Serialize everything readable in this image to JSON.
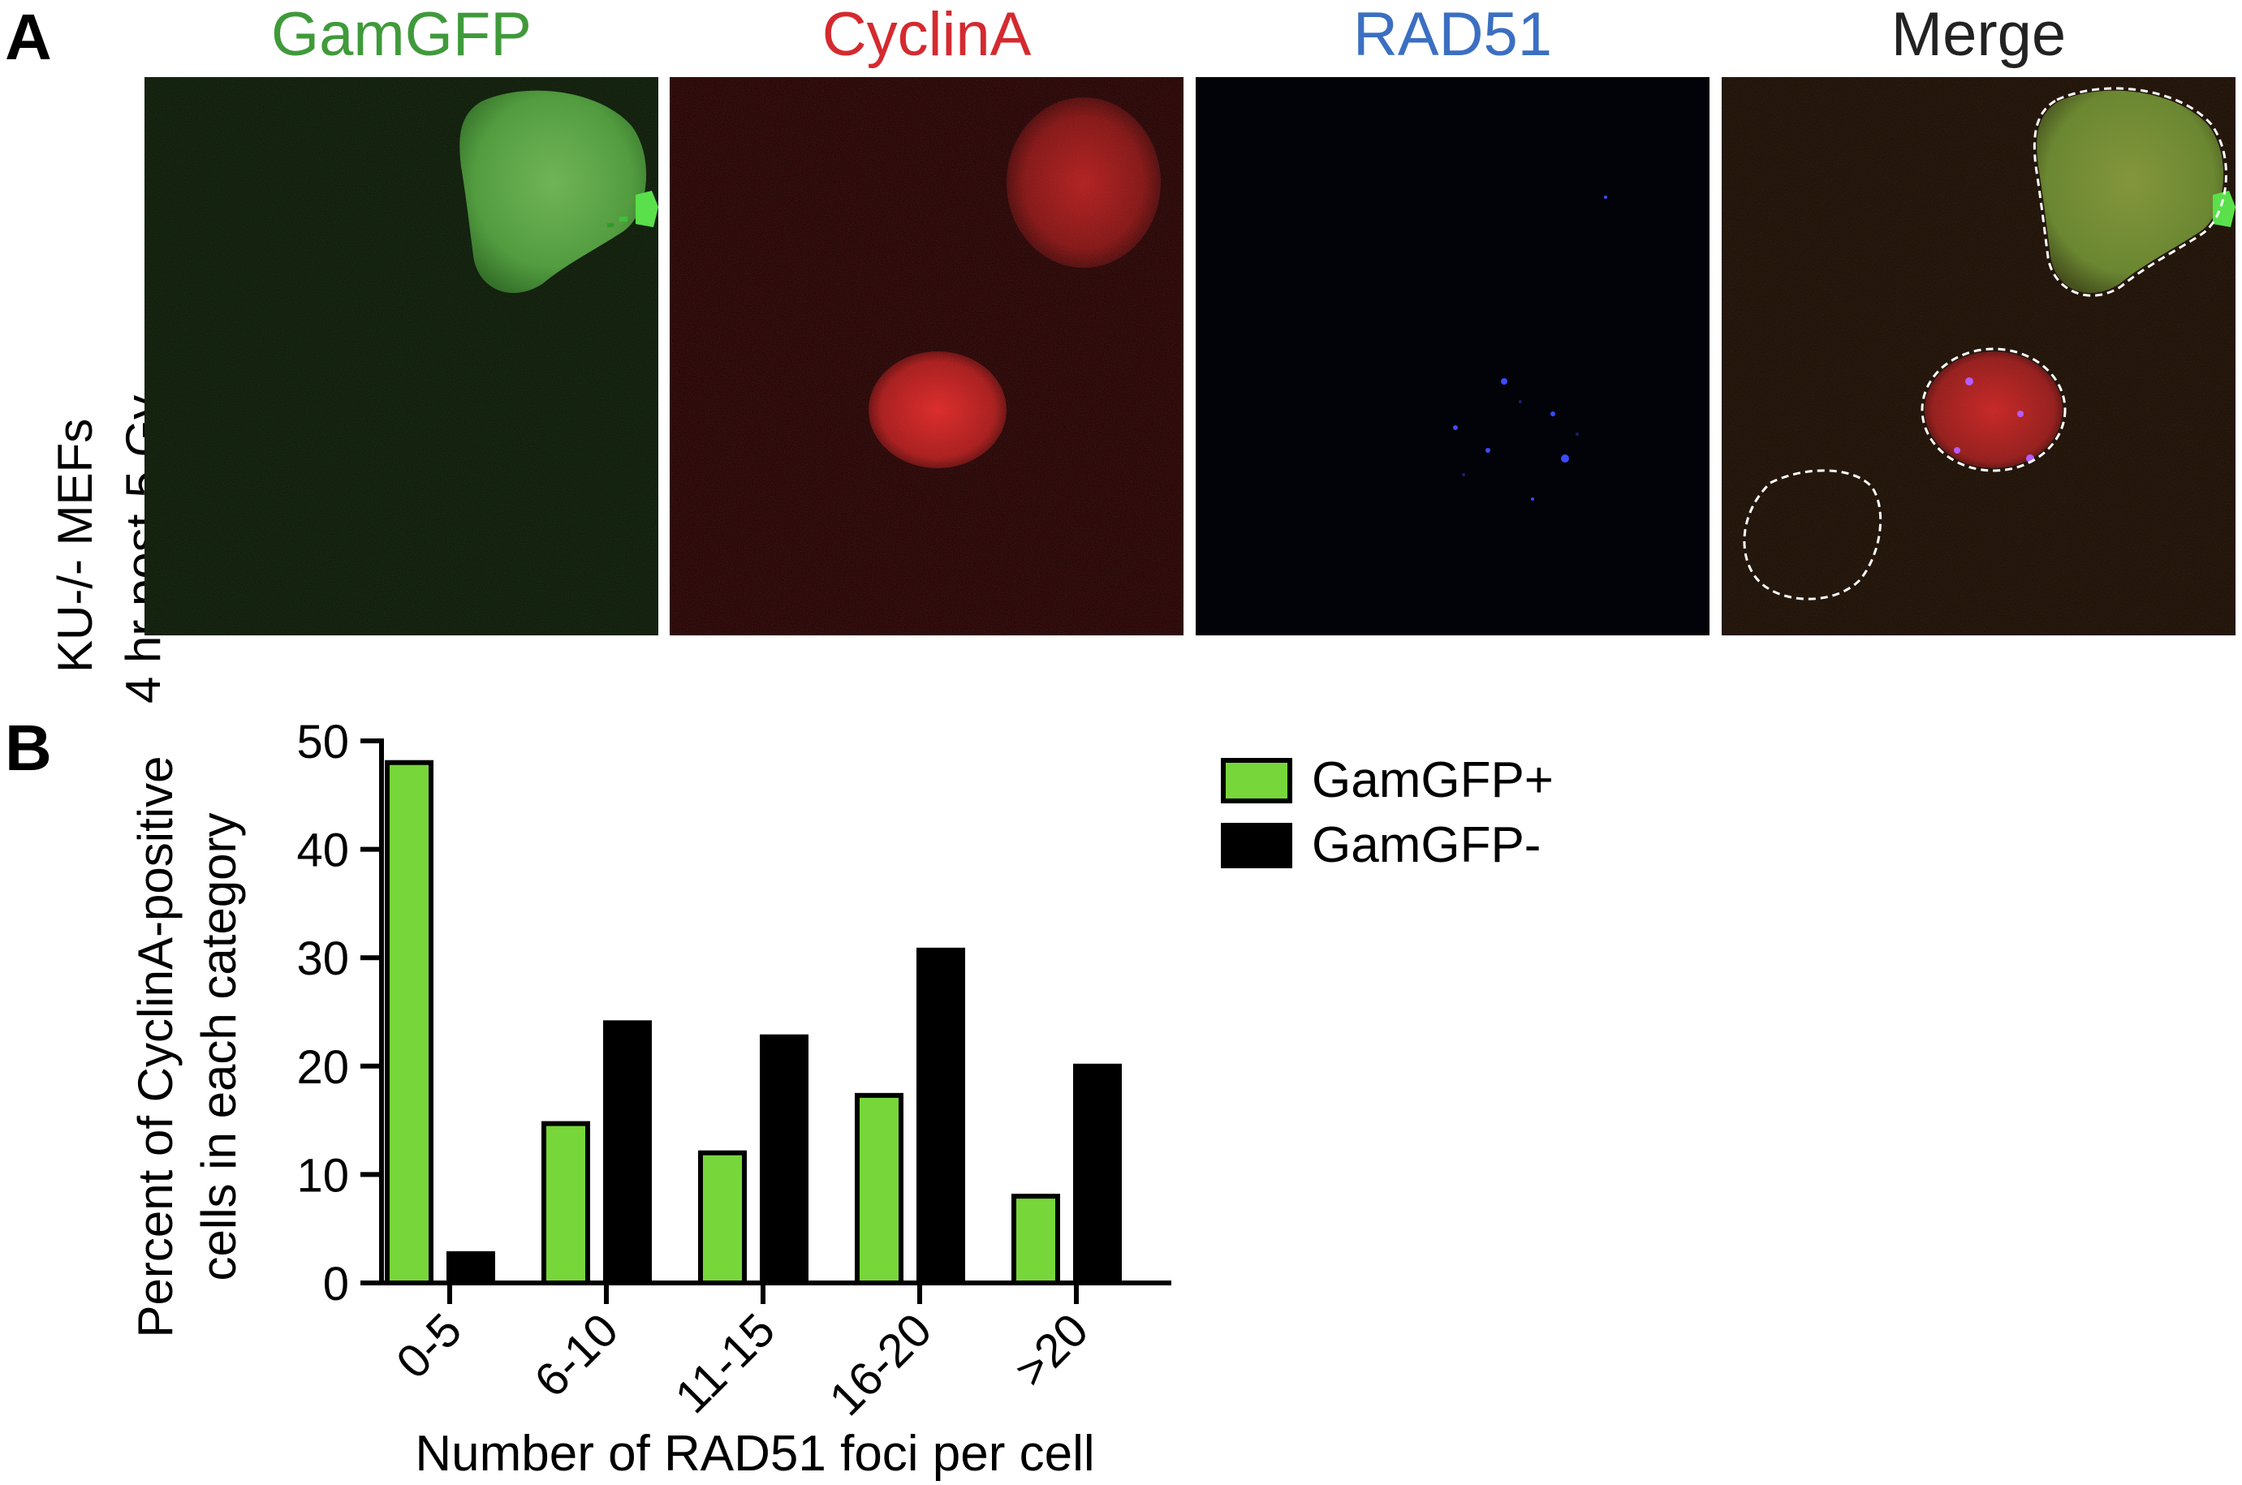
{
  "panels": {
    "a_label": "A",
    "b_label": "B"
  },
  "panel_a": {
    "channels": [
      {
        "label": "GamGFP",
        "color": "#3f9a3a"
      },
      {
        "label": "CyclinA",
        "color": "#d42a2f"
      },
      {
        "label": "RAD51",
        "color": "#3b6fc2"
      },
      {
        "label": "Merge",
        "color": "#222222"
      }
    ],
    "row_label_line1": "KU-/- MEFs",
    "row_label_line2": "4 hr post-5 Gy"
  },
  "chart_data": {
    "type": "bar",
    "categories": [
      "0-5",
      "6-10",
      "11-15",
      "16-20",
      ">20"
    ],
    "series": [
      {
        "name": "GamGFP+",
        "color": "#77d63a",
        "values": [
          48,
          14.7,
          12,
          17.3,
          8
        ]
      },
      {
        "name": "GamGFP-",
        "color": "#000000",
        "values": [
          2.7,
          24,
          22.7,
          30.7,
          20
        ]
      }
    ],
    "ylabel_line1": "Percent of CyclinA-positive",
    "ylabel_line2": "cells in each category",
    "xlabel": "Number of RAD51 foci per cell",
    "ylim": [
      0,
      50
    ],
    "yticks": [
      0,
      10,
      20,
      30,
      40,
      50
    ],
    "grid": false,
    "legend_position": "top-right"
  }
}
